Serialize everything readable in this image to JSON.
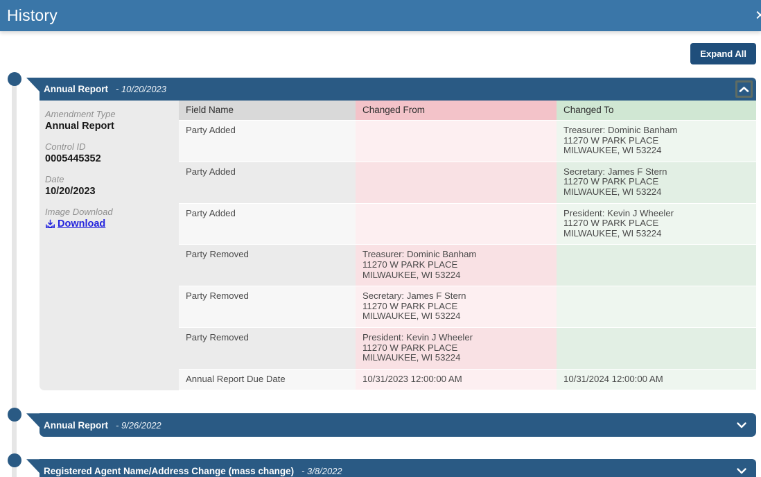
{
  "modal": {
    "title": "History",
    "close_label": "✕"
  },
  "toolbar": {
    "expand_all_label": "Expand All"
  },
  "sections": [
    {
      "title": "Annual Report",
      "date": "- 10/20/2023",
      "state": "expanded",
      "details": {
        "amendment_type_label": "Amendment Type",
        "amendment_type_value": "Annual Report",
        "control_id_label": "Control ID",
        "control_id_value": "0005445352",
        "date_label": "Date",
        "date_value": "10/20/2023",
        "image_download_label": "Image Download",
        "download_link_label": "Download"
      },
      "table": {
        "headers": [
          "Field Name",
          "Changed From",
          "Changed To"
        ],
        "rows": [
          {
            "field": "Party Added",
            "from": "",
            "to": "Treasurer: Dominic Banham\n11270 W PARK PLACE\nMILWAUKEE, WI 53224"
          },
          {
            "field": "Party Added",
            "from": "",
            "to": "Secretary: James F Stern\n11270 W PARK PLACE\nMILWAUKEE, WI 53224"
          },
          {
            "field": "Party Added",
            "from": "",
            "to": "President: Kevin J Wheeler\n11270 W PARK PLACE\nMILWAUKEE, WI 53224"
          },
          {
            "field": "Party Removed",
            "from": "Treasurer: Dominic Banham\n11270 W PARK PLACE\nMILWAUKEE, WI 53224",
            "to": ""
          },
          {
            "field": "Party Removed",
            "from": "Secretary: James F Stern\n11270 W PARK PLACE\nMILWAUKEE, WI 53224",
            "to": ""
          },
          {
            "field": "Party Removed",
            "from": "President: Kevin J Wheeler\n11270 W PARK PLACE\nMILWAUKEE, WI 53224",
            "to": ""
          },
          {
            "field": "Annual Report Due Date",
            "from": "10/31/2023 12:00:00 AM",
            "to": "10/31/2024 12:00:00 AM"
          }
        ]
      }
    },
    {
      "title": "Annual Report",
      "date": "- 9/26/2022",
      "state": "collapsed"
    },
    {
      "title": "Registered Agent Name/Address Change (mass change)",
      "date": "- 3/8/2022",
      "state": "collapsed"
    }
  ],
  "colors": {
    "titlebar": "#3a76a8",
    "accordion": "#2a5a84",
    "button": "#1f4e7b",
    "link": "#2424dd",
    "header_field_bg": "#d9d9d9",
    "header_from_bg": "#f3c3c9",
    "header_to_bg": "#d0e7d3",
    "row_odd_field": "#f7f7f7",
    "row_odd_from": "#fdeff1",
    "row_odd_to": "#eef6ef",
    "row_even_field": "#ebebeb",
    "row_even_from": "#f9e1e4",
    "row_even_to": "#e2efe4"
  }
}
